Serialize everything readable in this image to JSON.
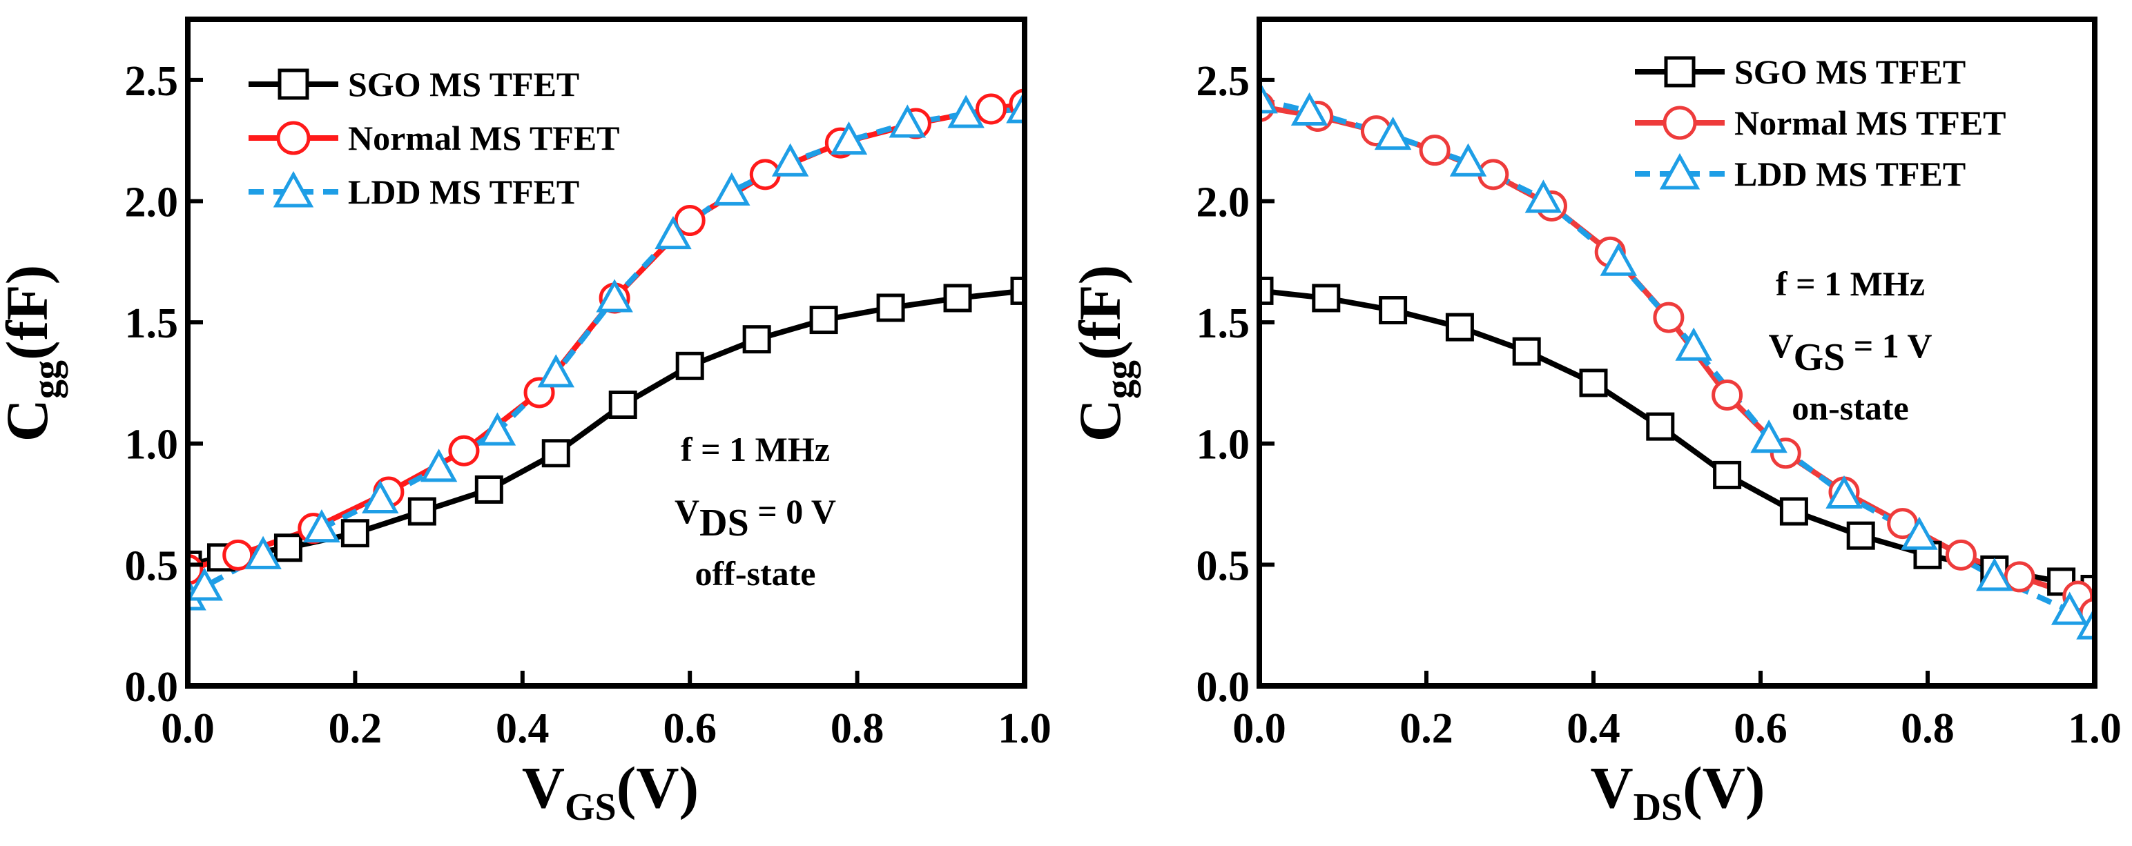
{
  "chart_data": [
    {
      "type": "line",
      "panel": "left",
      "xlabel": {
        "main": "V",
        "sub": "GS",
        "unit": "(V)"
      },
      "ylabel": {
        "main": "C",
        "sub": "gg",
        "unit": "(fF)"
      },
      "xlim": [
        0,
        1.0
      ],
      "ylim": [
        0,
        2.75
      ],
      "xticks": [
        "0.0",
        "0.2",
        "0.4",
        "0.6",
        "0.8",
        "1.0"
      ],
      "yticks": [
        "0.0",
        "0.5",
        "1.0",
        "1.5",
        "2.0",
        "2.5"
      ],
      "annotation": {
        "lines": [
          {
            "main": "f = 1 MHz",
            "sub": "",
            "rest": ""
          },
          {
            "main": "V",
            "sub": "DS",
            "rest": " = 0 V"
          },
          {
            "main": "off-state",
            "sub": "",
            "rest": ""
          }
        ]
      },
      "series": [
        {
          "name": "SGO MS TFET",
          "color": "#000000",
          "marker": "square",
          "dash": "",
          "x": [
            0,
            0.04,
            0.12,
            0.2,
            0.28,
            0.36,
            0.44,
            0.52,
            0.6,
            0.68,
            0.76,
            0.84,
            0.92,
            1.0
          ],
          "y": [
            0.5,
            0.53,
            0.57,
            0.63,
            0.72,
            0.81,
            0.96,
            1.16,
            1.32,
            1.43,
            1.51,
            1.56,
            1.6,
            1.63
          ]
        },
        {
          "name": "Normal MS TFET",
          "color": "#ff1a1a",
          "marker": "circle",
          "dash": "",
          "x": [
            0,
            0.06,
            0.15,
            0.24,
            0.33,
            0.42,
            0.51,
            0.6,
            0.69,
            0.78,
            0.87,
            0.96,
            1.0
          ],
          "y": [
            0.48,
            0.54,
            0.65,
            0.8,
            0.97,
            1.21,
            1.6,
            1.92,
            2.11,
            2.24,
            2.32,
            2.38,
            2.4
          ]
        },
        {
          "name": "LDD MS TFET",
          "color": "#1e9ee6",
          "marker": "triangle",
          "dash": "22 14",
          "x": [
            0,
            0.02,
            0.09,
            0.16,
            0.23,
            0.3,
            0.37,
            0.44,
            0.51,
            0.58,
            0.65,
            0.72,
            0.79,
            0.86,
            0.93,
            1.0
          ],
          "y": [
            0.37,
            0.41,
            0.54,
            0.65,
            0.77,
            0.9,
            1.05,
            1.29,
            1.6,
            1.86,
            2.04,
            2.16,
            2.25,
            2.32,
            2.36,
            2.38
          ]
        }
      ]
    },
    {
      "type": "line",
      "panel": "right",
      "xlabel": {
        "main": "V",
        "sub": "DS",
        "unit": "(V)"
      },
      "ylabel": {
        "main": "C",
        "sub": "gg",
        "unit": "(fF)"
      },
      "xlim": [
        0,
        1.0
      ],
      "ylim": [
        0,
        2.75
      ],
      "xticks": [
        "0.0",
        "0.2",
        "0.4",
        "0.6",
        "0.8",
        "1.0"
      ],
      "yticks": [
        "0.0",
        "0.5",
        "1.0",
        "1.5",
        "2.0",
        "2.5"
      ],
      "annotation": {
        "lines": [
          {
            "main": "f = 1 MHz",
            "sub": "",
            "rest": ""
          },
          {
            "main": "V",
            "sub": "GS",
            "rest": " = 1 V"
          },
          {
            "main": "on-state",
            "sub": "",
            "rest": ""
          }
        ]
      },
      "series": [
        {
          "name": "SGO MS TFET",
          "color": "#000000",
          "marker": "square",
          "dash": "",
          "x": [
            0,
            0.08,
            0.16,
            0.24,
            0.32,
            0.4,
            0.48,
            0.56,
            0.64,
            0.72,
            0.8,
            0.88,
            0.96,
            1.0
          ],
          "y": [
            1.63,
            1.6,
            1.55,
            1.48,
            1.38,
            1.25,
            1.07,
            0.87,
            0.72,
            0.62,
            0.54,
            0.48,
            0.43,
            0.4
          ]
        },
        {
          "name": "Normal MS TFET",
          "color": "#ee3b3b",
          "marker": "circle",
          "dash": "",
          "x": [
            0,
            0.07,
            0.14,
            0.21,
            0.28,
            0.35,
            0.42,
            0.49,
            0.56,
            0.63,
            0.7,
            0.77,
            0.84,
            0.91,
            0.98,
            1.0
          ],
          "y": [
            2.39,
            2.35,
            2.29,
            2.21,
            2.11,
            1.98,
            1.79,
            1.52,
            1.2,
            0.96,
            0.8,
            0.67,
            0.54,
            0.45,
            0.37,
            0.3
          ]
        },
        {
          "name": "LDD MS TFET",
          "color": "#1e9ee6",
          "marker": "triangle",
          "dash": "22 14",
          "x": [
            0,
            0.06,
            0.16,
            0.25,
            0.34,
            0.43,
            0.52,
            0.61,
            0.7,
            0.79,
            0.88,
            0.97,
            1.0
          ],
          "y": [
            2.42,
            2.37,
            2.27,
            2.16,
            2.01,
            1.75,
            1.4,
            1.02,
            0.79,
            0.62,
            0.45,
            0.31,
            0.25
          ]
        }
      ]
    }
  ]
}
